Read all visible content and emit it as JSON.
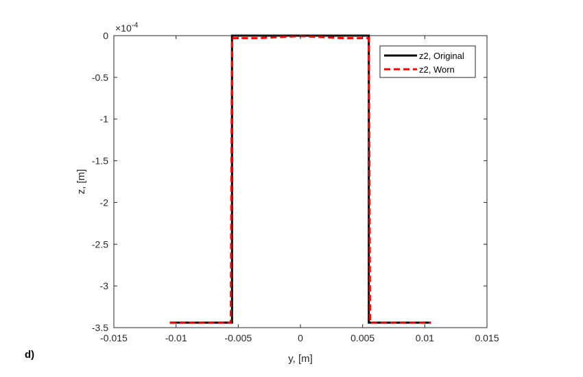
{
  "panel_label": "d)",
  "chart_data": {
    "type": "line",
    "title": "",
    "xlabel": "y, [m]",
    "ylabel": "z, [m]",
    "y_exponent_label": "×10",
    "y_exponent_power": "-4",
    "xlim": [
      -0.015,
      0.015
    ],
    "ylim": [
      -3.5,
      0
    ],
    "y_scale_factor": 0.0001,
    "x_ticks": [
      -0.015,
      -0.01,
      -0.005,
      0,
      0.005,
      0.01,
      0.015
    ],
    "x_tick_labels": [
      "-0.015",
      "-0.01",
      "-0.005",
      "0",
      "0.005",
      "0.01",
      "0.015"
    ],
    "y_ticks": [
      0,
      -0.5,
      -1,
      -1.5,
      -2,
      -2.5,
      -3,
      -3.5
    ],
    "y_tick_labels": [
      "0",
      "-0.5",
      "-1",
      "-1.5",
      "-2",
      "-2.5",
      "-3",
      "-3.5"
    ],
    "grid": false,
    "legend_position": "top-right",
    "series": [
      {
        "name": "z2, Original",
        "color": "#000000",
        "style": "solid",
        "x": [
          -0.0105,
          -0.0055,
          -0.0055,
          0.0055,
          0.0055,
          0.0105
        ],
        "y": [
          -3.44,
          -3.44,
          0,
          0,
          -3.44,
          -3.44
        ]
      },
      {
        "name": "z2, Worn",
        "color": "#ff0000",
        "style": "dashed",
        "x": [
          -0.0105,
          -0.0056,
          -0.0055,
          -0.0035,
          -0.002,
          0,
          0.002,
          0.0035,
          0.0055,
          0.0056,
          0.0105
        ],
        "y": [
          -3.44,
          -3.44,
          -0.03,
          -0.03,
          -0.02,
          -0.005,
          -0.02,
          -0.03,
          -0.03,
          -3.44,
          -3.44
        ]
      }
    ]
  }
}
